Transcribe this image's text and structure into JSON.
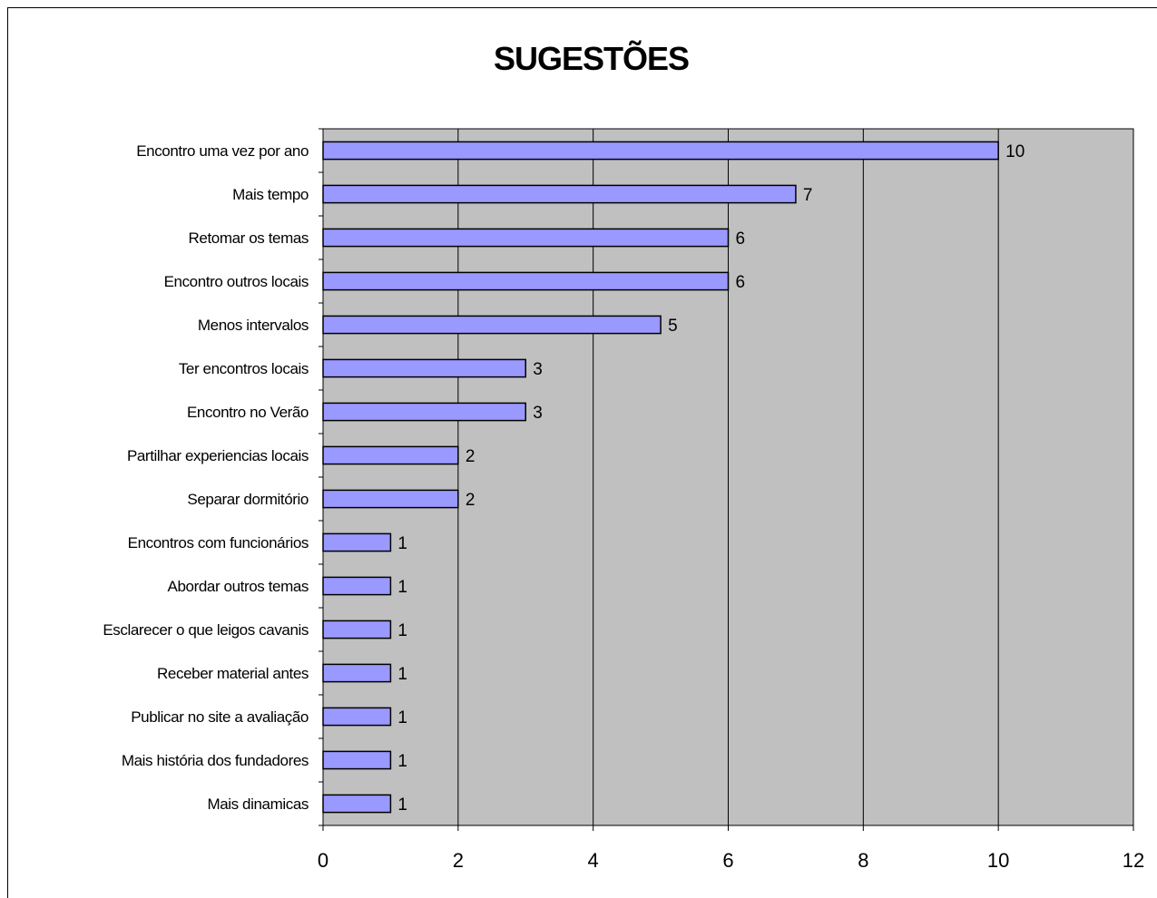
{
  "chart_data": {
    "type": "bar",
    "orientation": "horizontal",
    "title": "SUGESTÕES",
    "xlabel": "",
    "ylabel": "",
    "xlim": [
      0,
      12
    ],
    "x_ticks": [
      0,
      2,
      4,
      6,
      8,
      10,
      12
    ],
    "grid": true,
    "legend": "none",
    "plot_background": "#c0c0c0",
    "bar_color": "#9999ff",
    "categories": [
      "Encontro uma vez por ano",
      "Mais tempo",
      "Retomar os temas",
      "Encontro outros locais",
      "Menos intervalos",
      "Ter encontros locais",
      "Encontro no Verão",
      "Partilhar experiencias locais",
      "Separar dormitório",
      "Encontros com funcionários",
      "Abordar outros temas",
      "Esclarecer o que leigos cavanis",
      "Receber material antes",
      "Publicar no site a avaliação",
      "Mais história dos fundadores",
      "Mais dinamicas"
    ],
    "values": [
      10,
      7,
      6,
      6,
      5,
      3,
      3,
      2,
      2,
      1,
      1,
      1,
      1,
      1,
      1,
      1
    ]
  }
}
